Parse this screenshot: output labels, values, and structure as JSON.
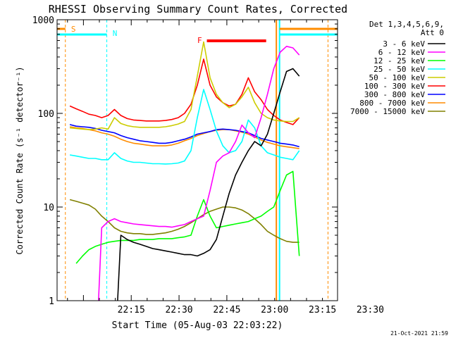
{
  "chart_data": {
    "type": "line",
    "title": "RHESSI Observing Summary Count Rates, Corrected",
    "xlabel": "Start Time (05-Aug-03 22:03:22)",
    "ylabel": "Corrected Count Rate (s⁻¹ detector⁻¹)",
    "yscale": "log",
    "ylim": [
      1,
      1000
    ],
    "xlim_minutes": [
      0,
      44
    ],
    "xticks": [
      "22:15",
      "22:30",
      "22:45",
      "23:00",
      "23:15",
      "23:30"
    ],
    "yticks": [
      "1",
      "10",
      "100",
      "1000"
    ],
    "grid": false,
    "legend_position": "right",
    "legend_title": [
      "Det 1,3,4,5,6,9,",
      "Att 0"
    ],
    "footer_date": "21-Oct-2021 21:59",
    "annotations": [
      {
        "label": "S",
        "color": "#ff8c00"
      },
      {
        "label": "N",
        "color": "#00ffff"
      },
      {
        "label": "F",
        "color": "#ff0000"
      }
    ],
    "series": [
      {
        "name": "3 - 6 keV",
        "color": "#000000",
        "x": [
          9.5,
          10,
          11,
          12,
          13,
          14,
          15,
          16,
          17,
          18,
          19,
          20,
          21,
          22,
          23,
          24,
          25,
          26,
          27,
          28,
          29,
          30,
          31,
          32,
          33,
          34,
          35,
          36,
          37,
          38
        ],
        "y": [
          1,
          5,
          4.5,
          4.2,
          4,
          3.8,
          3.6,
          3.5,
          3.4,
          3.3,
          3.2,
          3.1,
          3.1,
          3,
          3.2,
          3.5,
          4.5,
          8,
          14,
          22,
          30,
          40,
          50,
          45,
          60,
          100,
          170,
          280,
          300,
          250
        ]
      },
      {
        "name": "6 - 12 keV",
        "color": "#ff00ff",
        "x": [
          6.5,
          7,
          8,
          9,
          10,
          11,
          12,
          13,
          14,
          15,
          16,
          17,
          18,
          19,
          20,
          21,
          22,
          23,
          24,
          25,
          26,
          27,
          28,
          29,
          30,
          31,
          32,
          33,
          34,
          35,
          36,
          37,
          38
        ],
        "y": [
          1,
          6,
          7,
          7.5,
          7,
          6.8,
          6.6,
          6.5,
          6.4,
          6.3,
          6.2,
          6.2,
          6.1,
          6.3,
          6.5,
          7,
          7.5,
          8,
          15,
          30,
          35,
          38,
          50,
          75,
          62,
          55,
          90,
          160,
          300,
          450,
          520,
          500,
          420
        ]
      },
      {
        "name": "12 - 25 keV",
        "color": "#00ff00",
        "x": [
          3,
          4,
          5,
          6,
          7,
          8,
          9,
          10,
          11,
          12,
          13,
          14,
          15,
          16,
          17,
          18,
          19,
          20,
          21,
          22,
          23,
          24,
          25,
          26,
          27,
          28,
          29,
          30,
          31,
          32,
          33,
          34,
          35,
          36,
          37,
          38
        ],
        "y": [
          2.5,
          3,
          3.5,
          3.8,
          4,
          4.2,
          4.3,
          4.4,
          4.4,
          4.4,
          4.5,
          4.5,
          4.5,
          4.6,
          4.6,
          4.6,
          4.7,
          4.8,
          5,
          8,
          12,
          8,
          6,
          6.2,
          6.4,
          6.6,
          6.8,
          7,
          7.5,
          8,
          9,
          10,
          15,
          22,
          24,
          3
        ]
      },
      {
        "name": "25 - 50 keV",
        "color": "#00ffff",
        "x": [
          2,
          3,
          4,
          5,
          6,
          7,
          8,
          9,
          10,
          11,
          12,
          13,
          14,
          15,
          16,
          17,
          18,
          19,
          20,
          21,
          22,
          23,
          24,
          25,
          26,
          27,
          28,
          29,
          30,
          31,
          32,
          33,
          34,
          35,
          36,
          37,
          38
        ],
        "y": [
          36,
          35,
          34,
          33,
          33,
          32,
          32,
          38,
          33,
          31,
          30,
          30,
          29.5,
          29,
          29,
          28.8,
          29,
          29.5,
          31,
          40,
          90,
          180,
          110,
          65,
          45,
          38,
          40,
          50,
          85,
          70,
          45,
          38,
          36,
          34,
          33,
          32,
          40
        ]
      },
      {
        "name": "50 - 100 keV",
        "color": "#cccc00",
        "x": [
          2,
          3,
          4,
          5,
          6,
          7,
          8,
          9,
          10,
          11,
          12,
          13,
          14,
          15,
          16,
          17,
          18,
          19,
          20,
          21,
          22,
          23,
          24,
          25,
          26,
          27,
          28,
          29,
          30,
          31,
          32,
          33,
          34,
          35,
          36,
          37,
          38
        ],
        "y": [
          70,
          69,
          68,
          67,
          68,
          70,
          68,
          90,
          78,
          74,
          72,
          71,
          71,
          71,
          71,
          72,
          74,
          77,
          82,
          110,
          250,
          580,
          240,
          160,
          130,
          115,
          125,
          150,
          190,
          130,
          100,
          90,
          85,
          83,
          82,
          82,
          90
        ]
      },
      {
        "name": "100 - 300 keV",
        "color": "#ff0000",
        "x": [
          2,
          3,
          4,
          5,
          6,
          7,
          8,
          9,
          10,
          11,
          12,
          13,
          14,
          15,
          16,
          17,
          18,
          19,
          20,
          21,
          22,
          23,
          24,
          25,
          26,
          27,
          28,
          29,
          30,
          31,
          32,
          33,
          34,
          35,
          36,
          37,
          38
        ],
        "y": [
          120,
          112,
          105,
          98,
          95,
          90,
          95,
          110,
          95,
          88,
          85,
          84,
          83,
          83,
          83,
          84,
          86,
          90,
          100,
          125,
          200,
          380,
          200,
          150,
          130,
          120,
          125,
          160,
          240,
          170,
          140,
          110,
          95,
          85,
          80,
          76,
          90
        ]
      },
      {
        "name": "300 - 800 keV",
        "color": "#0000ff",
        "x": [
          2,
          3,
          4,
          5,
          6,
          7,
          8,
          9,
          10,
          11,
          12,
          13,
          14,
          15,
          16,
          17,
          18,
          19,
          20,
          21,
          22,
          23,
          24,
          25,
          26,
          27,
          28,
          29,
          30,
          31,
          32,
          33,
          34,
          35,
          36,
          37,
          38
        ],
        "y": [
          76,
          73,
          72,
          71,
          69,
          66,
          64,
          62,
          58,
          55,
          53,
          51,
          50,
          49,
          48,
          48,
          49,
          51,
          53,
          56,
          60,
          62,
          64,
          67,
          68,
          67,
          66,
          64,
          62,
          58,
          54,
          52,
          50,
          48,
          47,
          46,
          44
        ]
      },
      {
        "name": "800 - 7000 keV",
        "color": "#ff8c00",
        "x": [
          2,
          3,
          4,
          5,
          6,
          7,
          8,
          9,
          10,
          11,
          12,
          13,
          14,
          15,
          16,
          17,
          18,
          19,
          20,
          21,
          22,
          23,
          24,
          25,
          26,
          27,
          28,
          29,
          30,
          31,
          32,
          33,
          34,
          35,
          36,
          37,
          38
        ],
        "y": [
          72,
          70,
          69,
          67,
          65,
          62,
          60,
          57,
          53,
          50,
          48,
          47,
          46,
          45,
          45,
          45,
          46,
          48,
          51,
          54,
          58,
          61,
          64,
          66,
          67,
          67,
          65,
          63,
          60,
          56,
          52,
          49,
          47,
          45,
          44,
          43,
          42
        ]
      },
      {
        "name": "7000 - 15000 keV",
        "color": "#808000",
        "x": [
          2,
          3,
          4,
          5,
          6,
          7,
          8,
          9,
          10,
          11,
          12,
          13,
          14,
          15,
          16,
          17,
          18,
          19,
          20,
          21,
          22,
          23,
          24,
          25,
          26,
          27,
          28,
          29,
          30,
          31,
          32,
          33,
          34,
          35,
          36,
          37,
          38
        ],
        "y": [
          12,
          11.5,
          11,
          10.5,
          9.5,
          8,
          7,
          6,
          5.5,
          5.3,
          5.2,
          5.2,
          5.1,
          5.1,
          5.2,
          5.3,
          5.5,
          5.8,
          6.2,
          6.8,
          7.5,
          8.3,
          9,
          9.5,
          10,
          10,
          9.8,
          9.3,
          8.5,
          7.5,
          6.5,
          5.5,
          5,
          4.6,
          4.3,
          4.2,
          4.2
        ]
      }
    ]
  }
}
